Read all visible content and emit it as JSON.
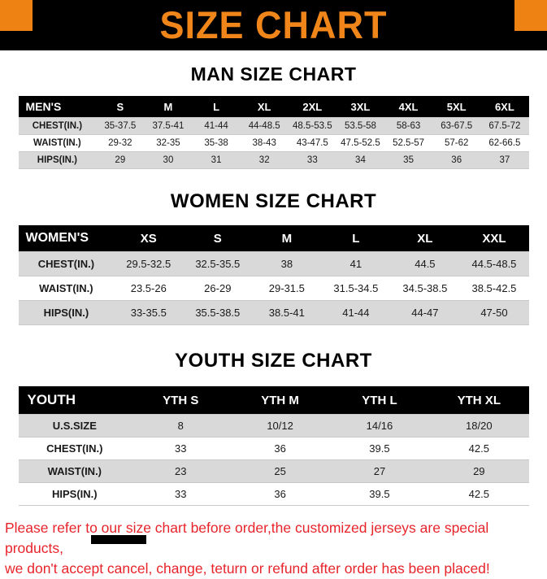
{
  "banner": {
    "title": "SIZE CHART"
  },
  "colors": {
    "accent_orange": "#F0861A",
    "corner_square_orange": "#EE8212",
    "banner_background": "#000000",
    "table_header_background": "#000000",
    "row_stripe_gray": "#D9D9D9",
    "note_red": "#E8242B"
  },
  "sections": [
    {
      "heading": "MAN SIZE CHART",
      "table": {
        "header": [
          "MEN'S",
          "S",
          "M",
          "L",
          "XL",
          "2XL",
          "3XL",
          "4XL",
          "5XL",
          "6XL"
        ],
        "rows": [
          [
            "CHEST(IN.)",
            "35-37.5",
            "37.5-41",
            "41-44",
            "44-48.5",
            "48.5-53.5",
            "53.5-58",
            "58-63",
            "63-67.5",
            "67.5-72"
          ],
          [
            "WAIST(IN.)",
            "29-32",
            "32-35",
            "35-38",
            "38-43",
            "43-47.5",
            "47.5-52.5",
            "52.5-57",
            "57-62",
            "62-66.5"
          ],
          [
            "HIPS(IN.)",
            "29",
            "30",
            "31",
            "32",
            "33",
            "34",
            "35",
            "36",
            "37"
          ]
        ]
      }
    },
    {
      "heading": "WOMEN SIZE CHART",
      "table": {
        "header": [
          "WOMEN'S",
          "XS",
          "S",
          "M",
          "L",
          "XL",
          "XXL"
        ],
        "rows": [
          [
            "CHEST(IN.)",
            "29.5-32.5",
            "32.5-35.5",
            "38",
            "41",
            "44.5",
            "44.5-48.5"
          ],
          [
            "WAIST(IN.)",
            "23.5-26",
            "26-29",
            "29-31.5",
            "31.5-34.5",
            "34.5-38.5",
            "38.5-42.5"
          ],
          [
            "HIPS(IN.)",
            "33-35.5",
            "35.5-38.5",
            "38.5-41",
            "41-44",
            "44-47",
            "47-50"
          ]
        ]
      }
    },
    {
      "heading": "YOUTH SIZE CHART",
      "table": {
        "header": [
          "YOUTH",
          "YTH S",
          "YTH M",
          "YTH L",
          "YTH XL"
        ],
        "rows": [
          [
            "U.S.SIZE",
            "8",
            "10/12",
            "14/16",
            "18/20"
          ],
          [
            "CHEST(IN.)",
            "33",
            "36",
            "39.5",
            "42.5"
          ],
          [
            "WAIST(IN.)",
            "23",
            "25",
            "27",
            "29"
          ],
          [
            "HIPS(IN.)",
            "33",
            "36",
            "39.5",
            "42.5"
          ]
        ]
      }
    }
  ],
  "note": {
    "line1": "Please refer to our size chart before order,the customized jerseys are special products,",
    "line2": "we don't accept cancel, change, teturn or refund after order has been placed!"
  }
}
